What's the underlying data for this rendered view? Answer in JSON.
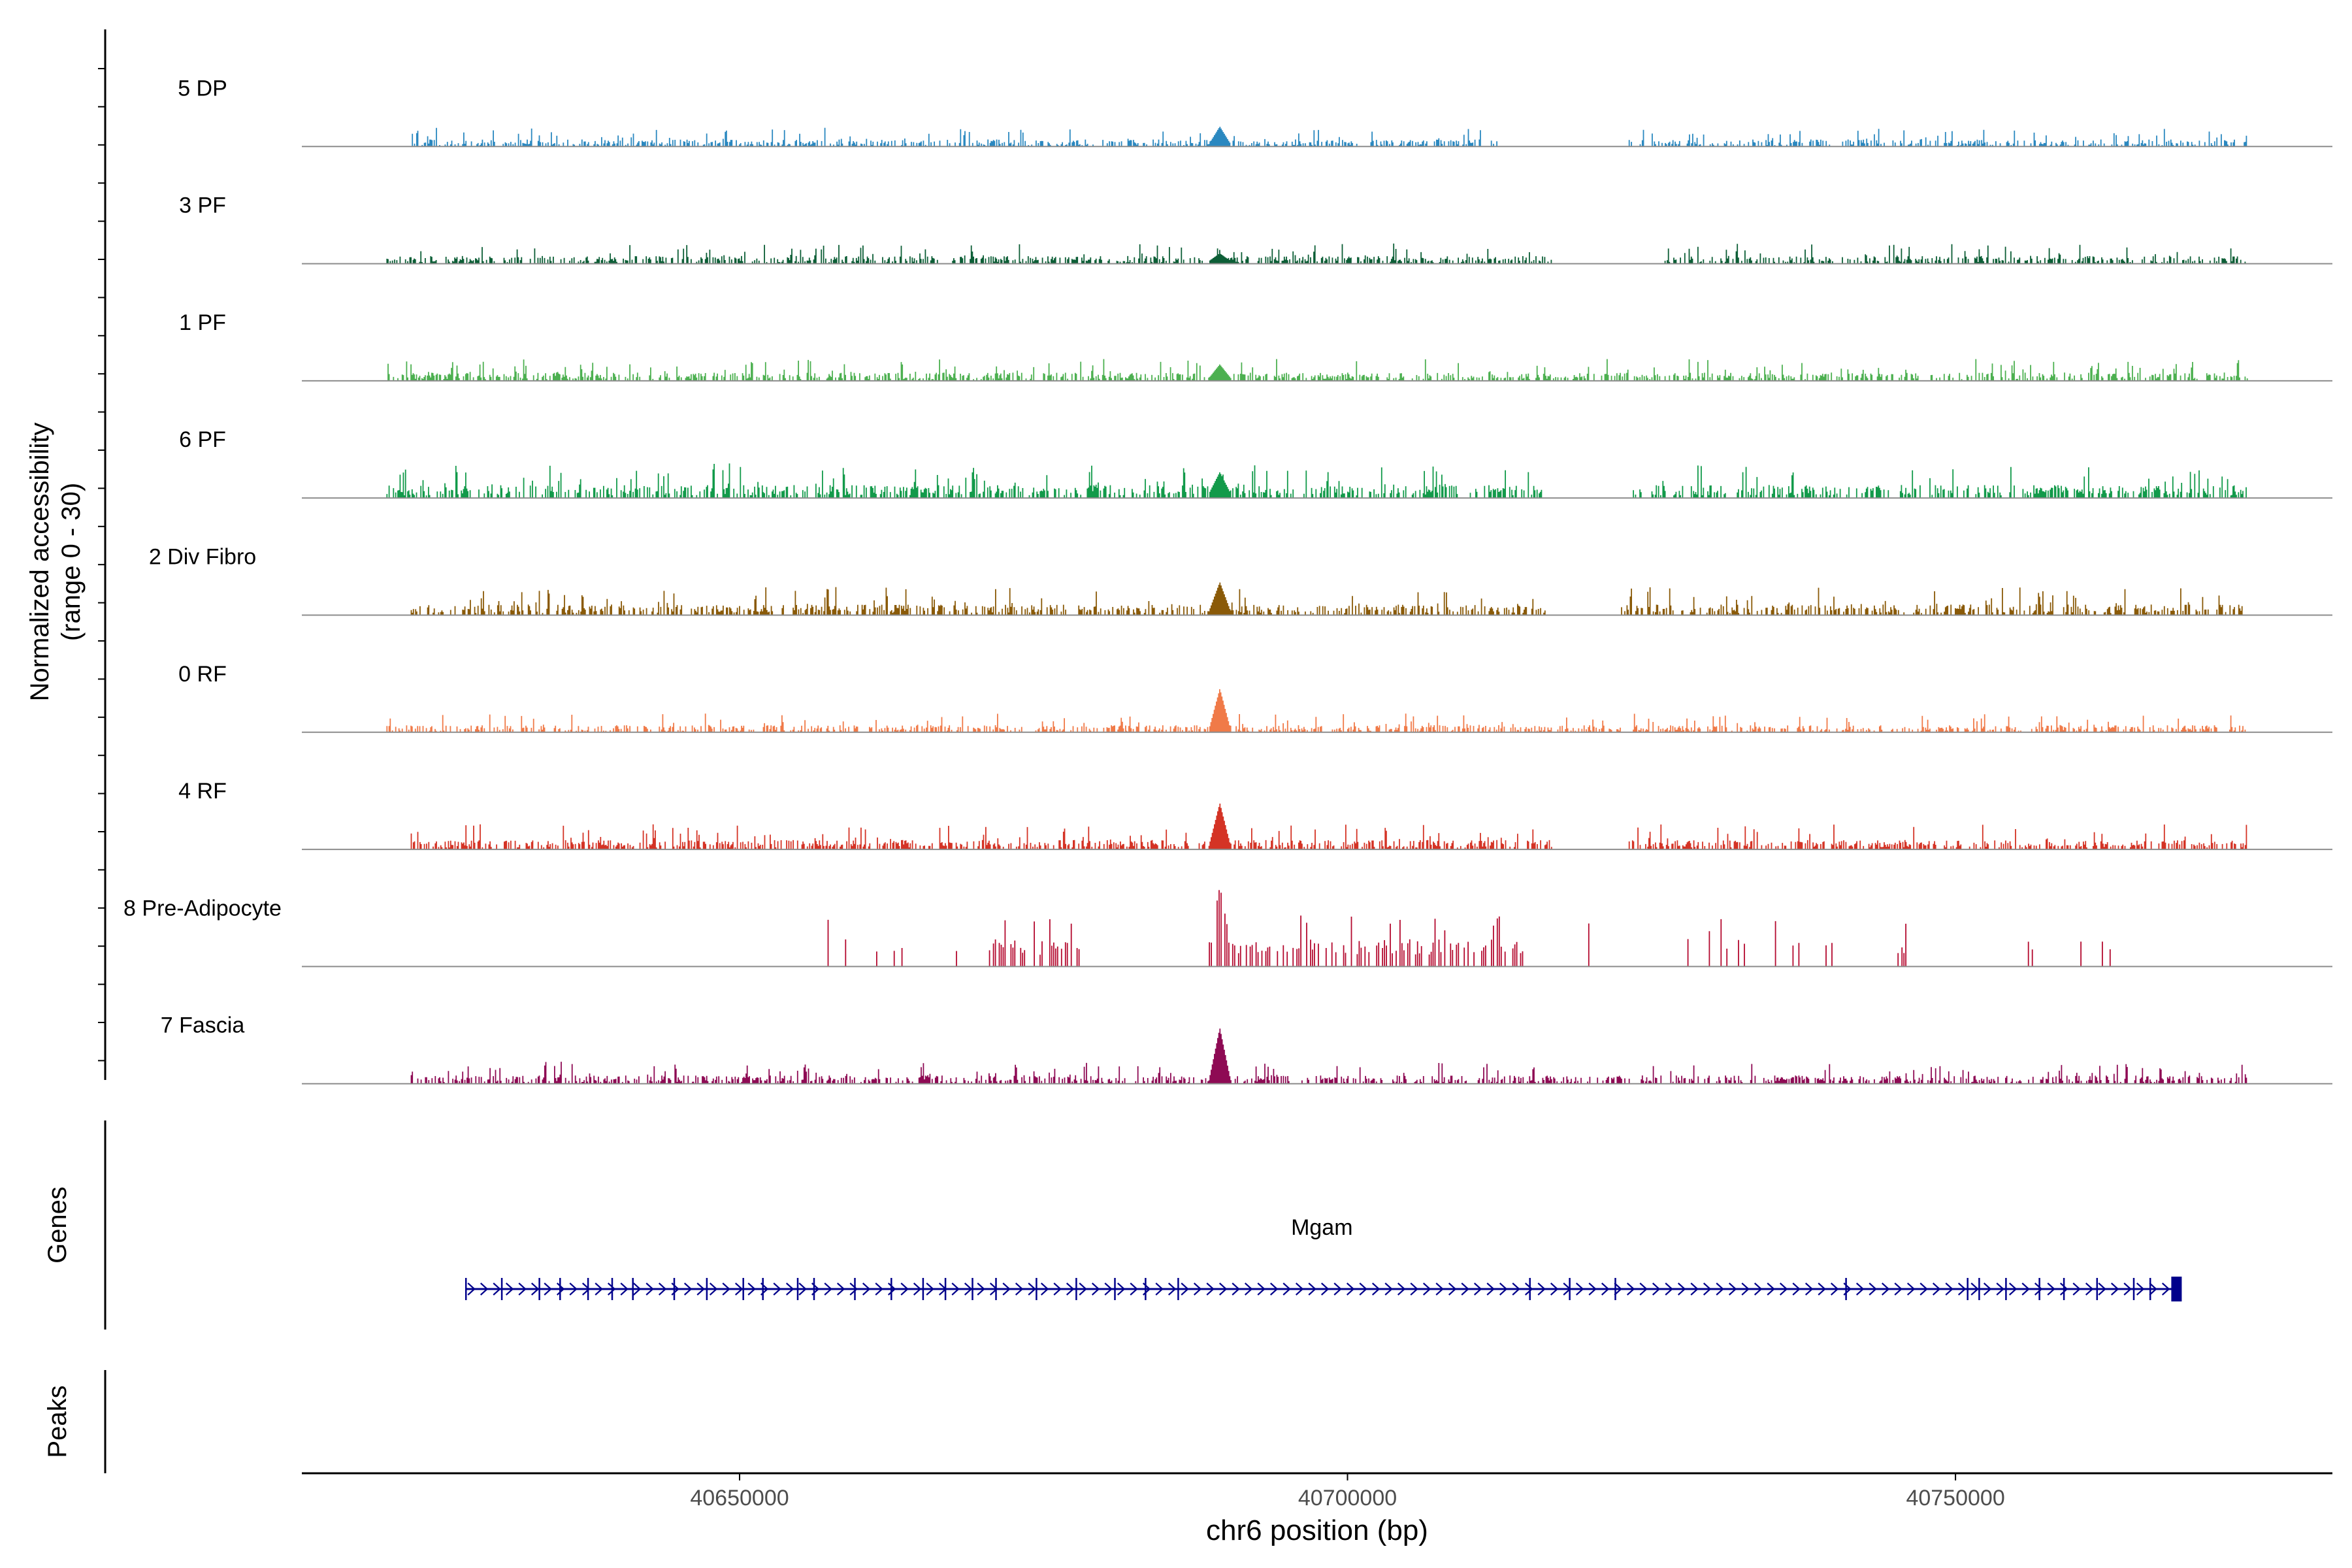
{
  "chart_data": {
    "type": "coverage-track",
    "ylabel_line1": "Normalized accessibility",
    "ylabel_line2": "(range 0 - 30)",
    "ylim": [
      0,
      30
    ],
    "genes_label": "Genes",
    "peaks_label": "Peaks",
    "xlabel": "chr6 position (bp)",
    "xlim": [
      40614000,
      40781000
    ],
    "x_ticks": [
      {
        "value": 40650000,
        "label": "40650000"
      },
      {
        "value": 40700000,
        "label": "40700000"
      },
      {
        "value": 40750000,
        "label": "40750000"
      }
    ],
    "hotspot_position": 40689500,
    "tracks": [
      {
        "name": "5 DP",
        "color": "#2A88C0",
        "start": 40623000,
        "end": 40774000,
        "base": 1.2,
        "hotspot": 4.5,
        "gaps": [
          [
            40712500,
            40723000
          ]
        ]
      },
      {
        "name": "3 PF",
        "color": "#0C5E36",
        "start": 40621000,
        "end": 40774000,
        "base": 1.3,
        "hotspot": 2.0,
        "gaps": [
          [
            40717000,
            40726000
          ]
        ]
      },
      {
        "name": "1 PF",
        "color": "#4CB050",
        "start": 40621000,
        "end": 40774000,
        "base": 1.4,
        "hotspot": 3.5,
        "gaps": []
      },
      {
        "name": "6 PF",
        "color": "#129A4A",
        "start": 40621000,
        "end": 40774000,
        "base": 2.2,
        "hotspot": 5.5,
        "gaps": [
          [
            40716000,
            40723500
          ]
        ]
      },
      {
        "name": "2 Div Fibro",
        "color": "#8A5A08",
        "start": 40623000,
        "end": 40774000,
        "base": 1.8,
        "hotspot": 7.5,
        "gaps": [
          [
            40717000,
            40722500
          ]
        ]
      },
      {
        "name": "0 RF",
        "color": "#F07A48",
        "start": 40621000,
        "end": 40774000,
        "base": 1.2,
        "hotspot": 10.5,
        "gaps": []
      },
      {
        "name": "4 RF",
        "color": "#D43325",
        "start": 40623000,
        "end": 40774000,
        "base": 1.6,
        "hotspot": 11.0,
        "gaps": [
          [
            40717000,
            40723000
          ]
        ]
      },
      {
        "name": "8 Pre-Adipocyte",
        "color": "#B40A2F",
        "start": 40656000,
        "end": 40767000,
        "base": 0,
        "hotspot": 20.5,
        "gaps": [],
        "sparse": true
      },
      {
        "name": "7 Fascia",
        "color": "#8E0A54",
        "start": 40623000,
        "end": 40774000,
        "base": 1.4,
        "hotspot": 13.5,
        "gaps": []
      }
    ],
    "genes": [
      {
        "name": "Mgam",
        "start": 40627500,
        "end": 40768500,
        "strand": "+",
        "color": "#00008B"
      }
    ]
  }
}
